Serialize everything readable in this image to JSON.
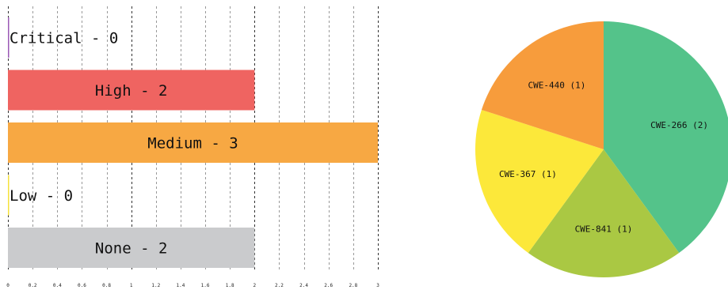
{
  "chart_data": [
    {
      "type": "bar",
      "orientation": "horizontal",
      "categories": [
        "Critical",
        "High",
        "Medium",
        "Low",
        "None"
      ],
      "values": [
        0,
        2,
        3,
        0,
        2
      ],
      "labels": [
        "Critical - 0",
        "High - 2",
        "Medium - 3",
        "Low - 0",
        "None - 2"
      ],
      "colors": [
        "#9b59b6",
        "#ef6461",
        "#f7a843",
        "#f5e23c",
        "#cacbcd"
      ],
      "xlim": [
        0,
        3
      ],
      "xticks": [
        "0",
        "0.2",
        "0.4",
        "0.6",
        "0.8",
        "1",
        "1.2",
        "1.4",
        "1.6",
        "1.8",
        "2",
        "2.2",
        "2.4",
        "2.6",
        "2.8",
        "3"
      ],
      "grid": true,
      "title": "",
      "xlabel": "",
      "ylabel": ""
    },
    {
      "type": "pie",
      "labels": [
        "CWE-266 (2)",
        "CWE-841 (1)",
        "CWE-367 (1)",
        "CWE-440 (1)"
      ],
      "values": [
        2,
        1,
        1,
        1
      ],
      "colors": [
        "#54c38a",
        "#aac843",
        "#fce83a",
        "#f79c3c"
      ],
      "title": ""
    }
  ]
}
